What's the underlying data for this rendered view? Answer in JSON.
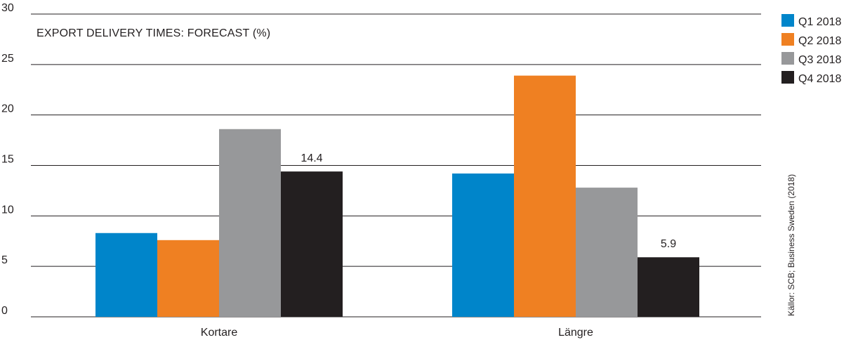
{
  "chart_data": {
    "type": "bar",
    "title": "EXPORT DELIVERY TIMES: FORECAST (%)",
    "categories": [
      "Kortare",
      "Längre"
    ],
    "series": [
      {
        "name": "Q1 2018",
        "color": "#0085ca",
        "values": [
          8.3,
          14.2
        ]
      },
      {
        "name": "Q2 2018",
        "color": "#ef8022",
        "values": [
          7.6,
          23.9
        ]
      },
      {
        "name": "Q3 2018",
        "color": "#97989a",
        "values": [
          18.6,
          12.8
        ]
      },
      {
        "name": "Q4 2018",
        "color": "#231f20",
        "values": [
          14.4,
          5.9
        ]
      }
    ],
    "data_labels": [
      {
        "series": 3,
        "category": 0,
        "text": "14.4"
      },
      {
        "series": 3,
        "category": 1,
        "text": "5.9"
      }
    ],
    "ylim": [
      0,
      30
    ],
    "yticks": [
      0,
      5,
      10,
      15,
      20,
      25,
      30
    ],
    "grid": true,
    "legend_position": "top-right",
    "source": "Källor: SCB; Business Sweden (2018)"
  }
}
